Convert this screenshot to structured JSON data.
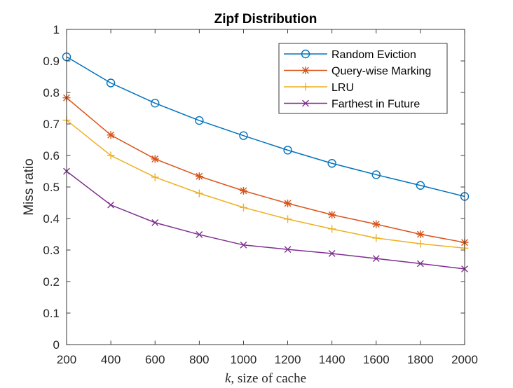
{
  "chart_data": {
    "type": "line",
    "title": "Zipf Distribution",
    "xlabel_var": "k",
    "xlabel_rest": ", size of cache",
    "ylabel": "Miss ratio",
    "x": [
      200,
      400,
      600,
      800,
      1000,
      1200,
      1400,
      1600,
      1800,
      2000
    ],
    "xlim": [
      200,
      2000
    ],
    "ylim": [
      0,
      1
    ],
    "xticks": [
      200,
      400,
      600,
      800,
      1000,
      1200,
      1400,
      1600,
      1800,
      2000
    ],
    "yticks": [
      0,
      0.1,
      0.2,
      0.3,
      0.4,
      0.5,
      0.6,
      0.7,
      0.8,
      0.9,
      1
    ],
    "ytick_labels": [
      "0",
      "0.1",
      "0.2",
      "0.3",
      "0.4",
      "0.5",
      "0.6",
      "0.7",
      "0.8",
      "0.9",
      "1"
    ],
    "legend_position": "top-right",
    "series": [
      {
        "name": "Random Eviction",
        "color": "#0072BD",
        "marker": "circle",
        "values": [
          0.913,
          0.83,
          0.766,
          0.711,
          0.663,
          0.617,
          0.575,
          0.539,
          0.505,
          0.47
        ]
      },
      {
        "name": "Query-wise Marking",
        "color": "#D95319",
        "marker": "asterisk",
        "values": [
          0.783,
          0.665,
          0.589,
          0.534,
          0.488,
          0.448,
          0.412,
          0.382,
          0.35,
          0.324
        ]
      },
      {
        "name": "LRU",
        "color": "#EDB120",
        "marker": "plus",
        "values": [
          0.712,
          0.6,
          0.531,
          0.48,
          0.435,
          0.398,
          0.367,
          0.338,
          0.32,
          0.306
        ]
      },
      {
        "name": "Farthest in Future",
        "color": "#7E2F8E",
        "marker": "cross",
        "values": [
          0.55,
          0.443,
          0.387,
          0.349,
          0.316,
          0.302,
          0.289,
          0.273,
          0.257,
          0.24
        ]
      }
    ]
  }
}
